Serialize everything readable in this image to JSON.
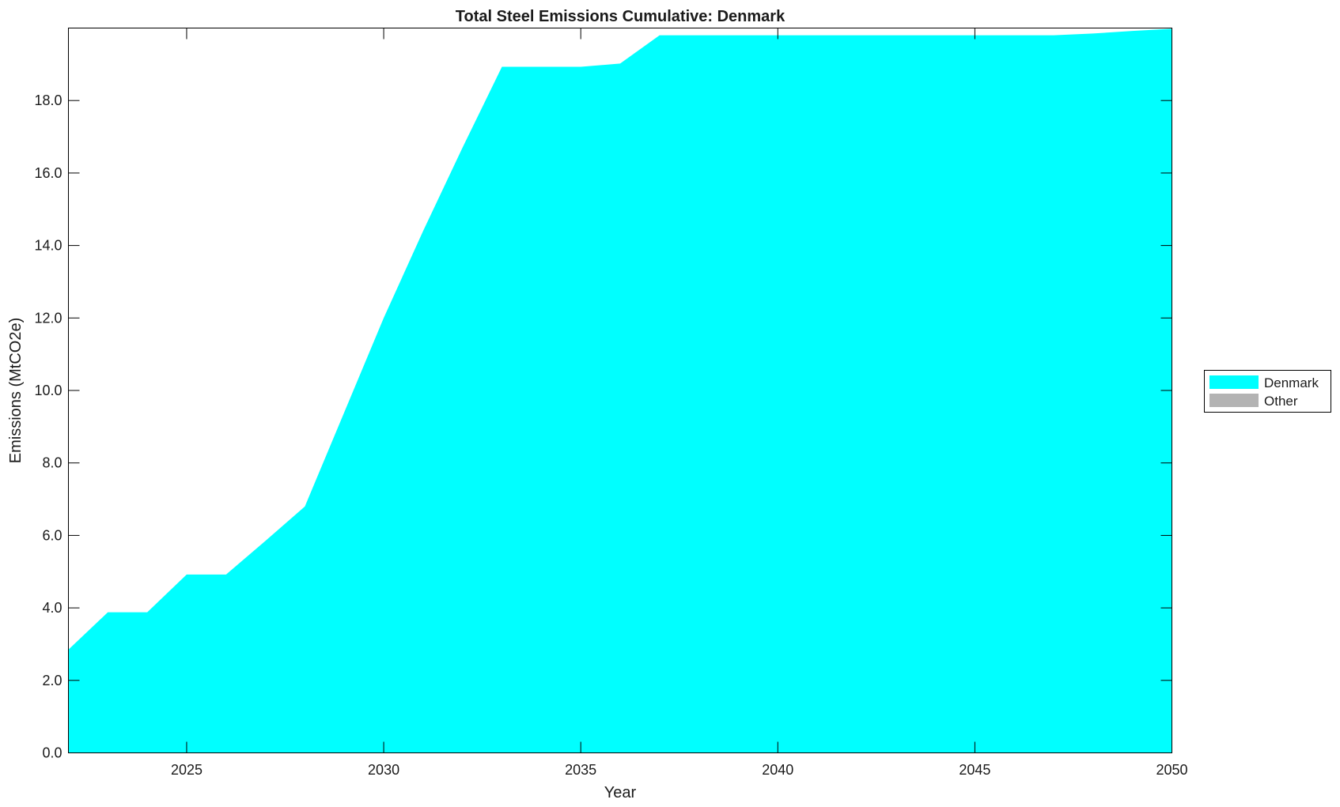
{
  "chart_data": {
    "type": "area",
    "title": "Total Steel Emissions Cumulative: Denmark",
    "xlabel": "Year",
    "ylabel": "Emissions (MtCO2e)",
    "xlim": [
      2022,
      2050
    ],
    "ylim": [
      0,
      20
    ],
    "xticks": [
      2025,
      2030,
      2035,
      2040,
      2045,
      2050
    ],
    "yticks": [
      0,
      2,
      4,
      6,
      8,
      10,
      12,
      14,
      16,
      18
    ],
    "ytick_format": "0.0",
    "grid": false,
    "legend_placement": "right",
    "x": [
      2022,
      2023,
      2024,
      2025,
      2026,
      2027,
      2028,
      2029,
      2030,
      2031,
      2032,
      2033,
      2034,
      2035,
      2036,
      2037,
      2038,
      2039,
      2040,
      2041,
      2042,
      2043,
      2044,
      2045,
      2046,
      2047,
      2048,
      2049,
      2050
    ],
    "series": [
      {
        "name": "Denmark",
        "color": "#00ffff",
        "values": [
          2.85,
          3.88,
          3.88,
          4.92,
          4.92,
          5.85,
          6.8,
          9.4,
          12.0,
          14.4,
          16.7,
          18.93,
          18.93,
          18.93,
          19.02,
          19.8,
          19.8,
          19.8,
          19.8,
          19.8,
          19.8,
          19.8,
          19.8,
          19.8,
          19.8,
          19.8,
          19.85,
          19.92,
          19.98
        ]
      },
      {
        "name": "Other",
        "color": "#b3b3b3",
        "values": [
          0,
          0,
          0,
          0,
          0,
          0,
          0,
          0,
          0,
          0,
          0,
          0,
          0,
          0,
          0,
          0,
          0,
          0,
          0,
          0,
          0,
          0,
          0,
          0,
          0,
          0,
          0,
          0,
          0
        ]
      }
    ]
  }
}
